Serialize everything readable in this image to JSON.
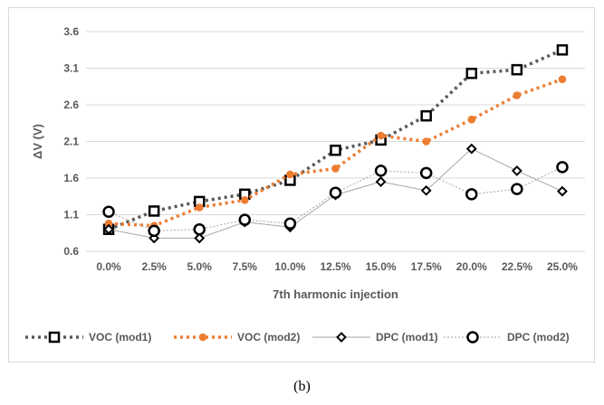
{
  "caption": "(b)",
  "chart_data": {
    "type": "line",
    "title": "",
    "xlabel": "7th harmonic injection",
    "ylabel": "ΔV (V)",
    "categories": [
      "0.0%",
      "2.5%",
      "5.0%",
      "7.5%",
      "10.0%",
      "12.5%",
      "15.0%",
      "17.5%",
      "20.0%",
      "22.5%",
      "25.0%"
    ],
    "ylim": [
      0.6,
      3.6
    ],
    "yticks": [
      "0.6",
      "1.1",
      "1.6",
      "2.1",
      "2.6",
      "3.1",
      "3.6"
    ],
    "grid": true,
    "legend_position": "bottom",
    "series": [
      {
        "name": "VOC (mod1)",
        "values": [
          0.9,
          1.15,
          1.28,
          1.38,
          1.57,
          1.98,
          2.12,
          2.45,
          3.03,
          3.08,
          3.35
        ],
        "color": "#595959",
        "line": "dotted",
        "marker": "square"
      },
      {
        "name": "VOC (mod2)",
        "values": [
          0.98,
          0.95,
          1.2,
          1.3,
          1.65,
          1.73,
          2.18,
          2.1,
          2.4,
          2.73,
          2.95
        ],
        "color": "#ed7d31",
        "line": "dotted",
        "marker": "circle-filled"
      },
      {
        "name": "DPC (mod1)",
        "values": [
          0.9,
          0.78,
          0.78,
          1.0,
          0.93,
          1.37,
          1.55,
          1.43,
          2.0,
          1.7,
          1.42
        ],
        "color": "#000000",
        "line": "solid-thin",
        "marker": "diamond"
      },
      {
        "name": "DPC (mod2)",
        "values": [
          1.14,
          0.88,
          0.9,
          1.03,
          0.98,
          1.4,
          1.7,
          1.67,
          1.38,
          1.45,
          1.75
        ],
        "color": "#000000",
        "line": "dotted-thin",
        "marker": "circle-open"
      }
    ]
  }
}
